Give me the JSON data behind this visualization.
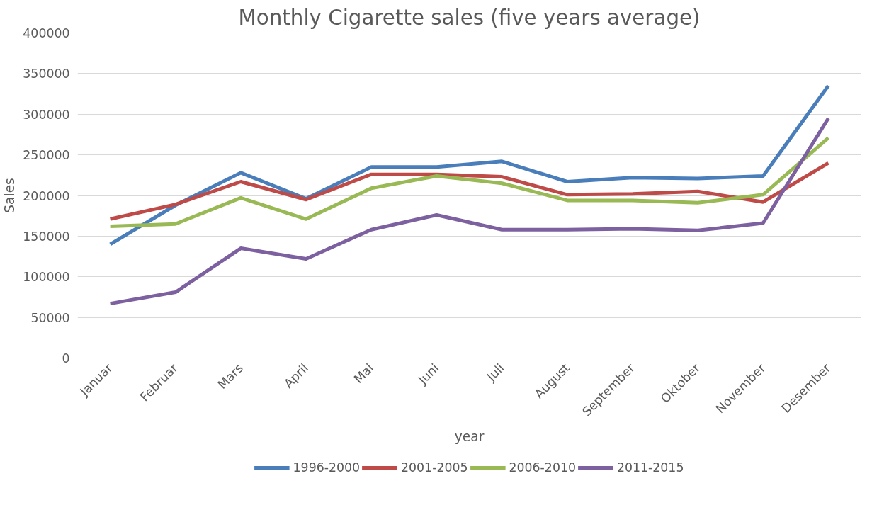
{
  "chart_data": {
    "type": "line",
    "title": "Monthly Cigarette sales (five years average)",
    "xlabel": "year",
    "ylabel": "Sales",
    "categories": [
      "Januar",
      "Februar",
      "Mars",
      "April",
      "Mai",
      "Juni",
      "Juli",
      "August",
      "September",
      "Oktober",
      "November",
      "Desember"
    ],
    "series": [
      {
        "name": "1996-2000",
        "color": "#4a7ebb",
        "values": [
          140000,
          188000,
          228000,
          196000,
          235000,
          235000,
          242000,
          217000,
          222000,
          221000,
          224000,
          335000
        ]
      },
      {
        "name": "2001-2005",
        "color": "#be4b48",
        "values": [
          171000,
          189000,
          217000,
          195000,
          226000,
          226000,
          223000,
          201000,
          202000,
          205000,
          192000,
          240000
        ]
      },
      {
        "name": "2006-2010",
        "color": "#98b954",
        "values": [
          162000,
          165000,
          197000,
          171000,
          209000,
          224000,
          215000,
          194000,
          194000,
          191000,
          201000,
          271000
        ]
      },
      {
        "name": "2011-2015",
        "color": "#7d60a0",
        "values": [
          67000,
          81000,
          135000,
          122000,
          158000,
          176000,
          158000,
          158000,
          159000,
          157000,
          166000,
          295000
        ]
      }
    ],
    "ylim": [
      0,
      400000
    ],
    "yticks": [
      0,
      50000,
      100000,
      150000,
      200000,
      250000,
      300000,
      350000,
      400000
    ],
    "grid": "y",
    "legend": "bottom",
    "marker": "none",
    "line_style": "solid"
  }
}
